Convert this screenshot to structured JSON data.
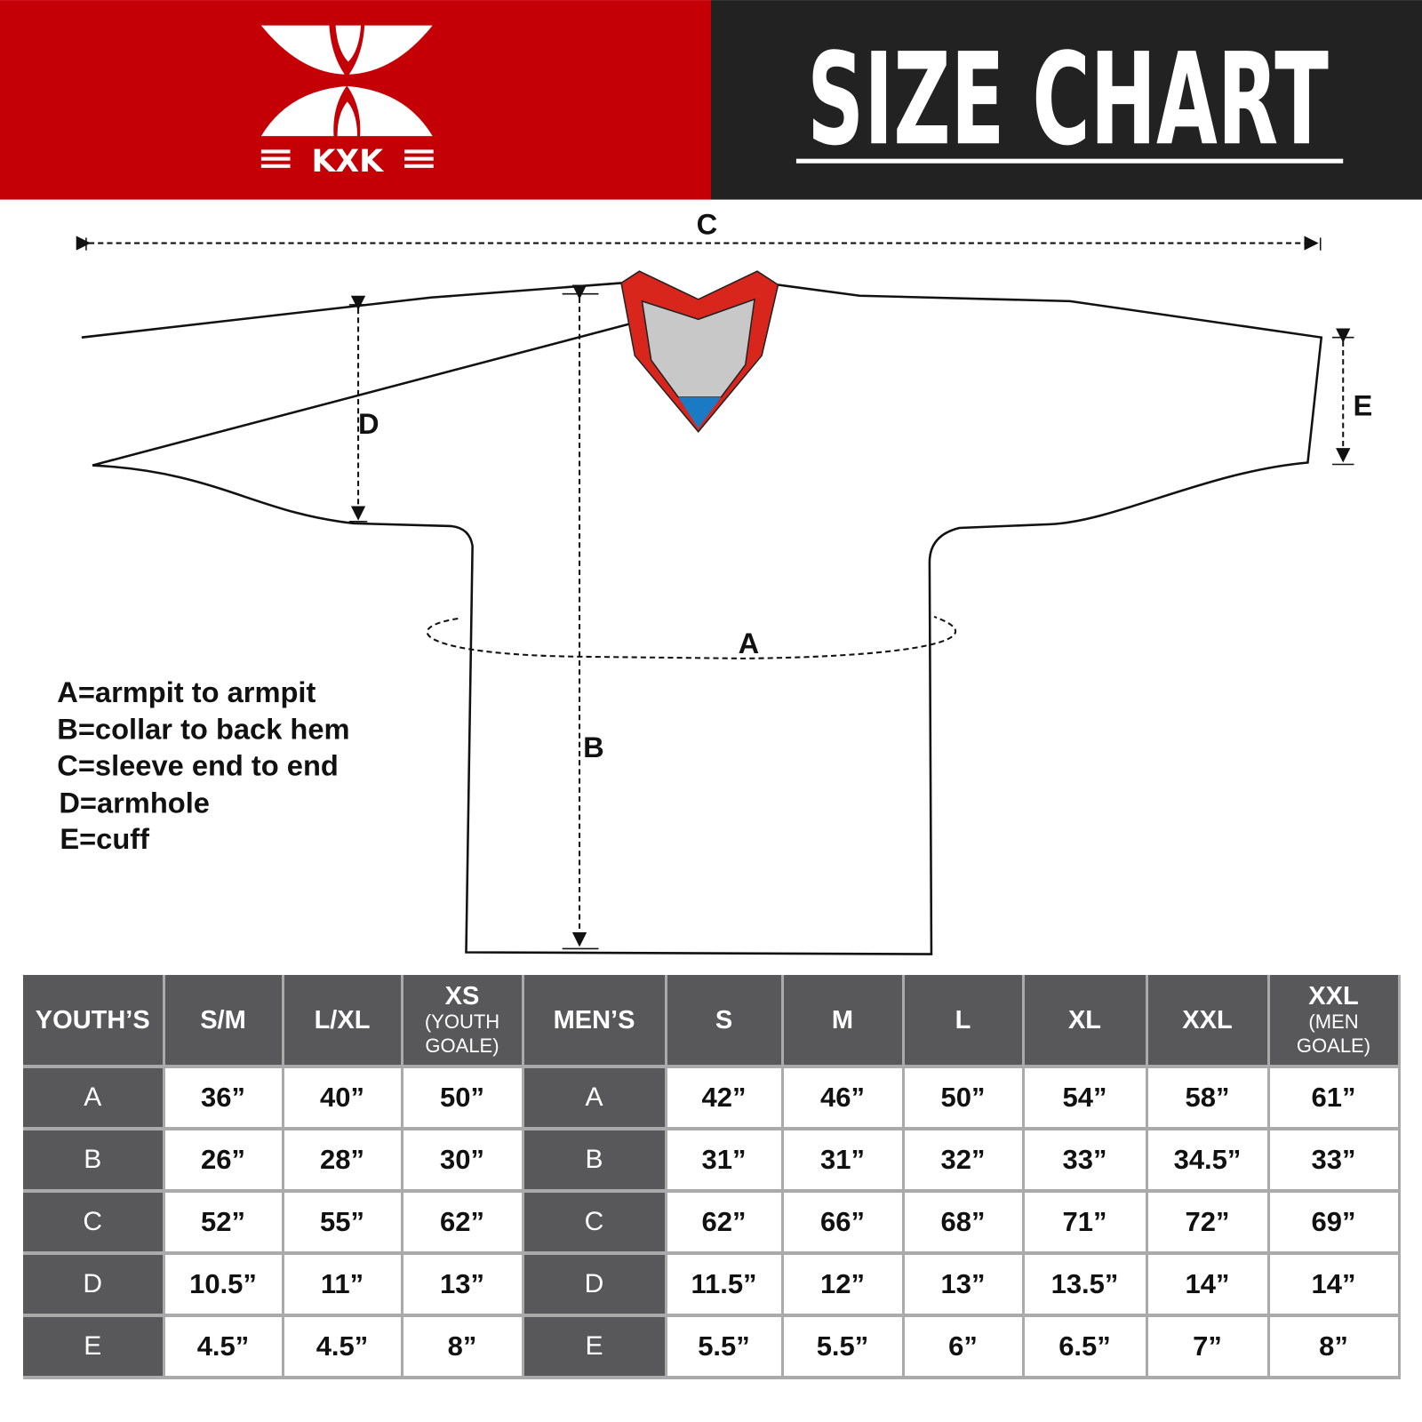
{
  "brand": {
    "logo_text": "KXK",
    "colors": {
      "red": "#c40006",
      "dark": "#222222",
      "table_header": "#58585a",
      "collar_red": "#d9261c",
      "collar_grey": "#c8c8c8",
      "collar_blue": "#1a7bc4"
    }
  },
  "header": {
    "title": "SIZE CHART"
  },
  "diagram": {
    "labels": {
      "a": "A",
      "b": "B",
      "c": "C",
      "d": "D",
      "e": "E"
    }
  },
  "legend": [
    "A=armpit to armpit",
    "B=collar to back hem",
    "C=sleeve end to end",
    "D=armhole",
    "E=cuff"
  ],
  "table": {
    "youth_header": "YOUTH’S",
    "men_header": "MEN’S",
    "youth_sizes": [
      {
        "main": "S/M",
        "sub": ""
      },
      {
        "main": "L/XL",
        "sub": ""
      },
      {
        "main": "XS",
        "sub": "(YOUTH GOALE)"
      }
    ],
    "men_sizes": [
      {
        "main": "S",
        "sub": ""
      },
      {
        "main": "M",
        "sub": ""
      },
      {
        "main": "L",
        "sub": ""
      },
      {
        "main": "XL",
        "sub": ""
      },
      {
        "main": "XXL",
        "sub": ""
      },
      {
        "main": "XXL",
        "sub": "(MEN GOALE)"
      }
    ],
    "rows": [
      {
        "label": "A",
        "youth": [
          "36”",
          "40”",
          "50”"
        ],
        "men": [
          "42”",
          "46”",
          "50”",
          "54”",
          "58”",
          "61”"
        ]
      },
      {
        "label": "B",
        "youth": [
          "26”",
          "28”",
          "30”"
        ],
        "men": [
          "31”",
          "31”",
          "32”",
          "33”",
          "34.5”",
          "33”"
        ]
      },
      {
        "label": "C",
        "youth": [
          "52”",
          "55”",
          "62”"
        ],
        "men": [
          "62”",
          "66”",
          "68”",
          "71”",
          "72”",
          "69”"
        ]
      },
      {
        "label": "D",
        "youth": [
          "10.5”",
          "11”",
          "13”"
        ],
        "men": [
          "11.5”",
          "12”",
          "13”",
          "13.5”",
          "14”",
          "14”"
        ]
      },
      {
        "label": "E",
        "youth": [
          "4.5”",
          "4.5”",
          "8”"
        ],
        "men": [
          "5.5”",
          "5.5”",
          "6”",
          "6.5”",
          "7”",
          "8”"
        ]
      }
    ]
  }
}
